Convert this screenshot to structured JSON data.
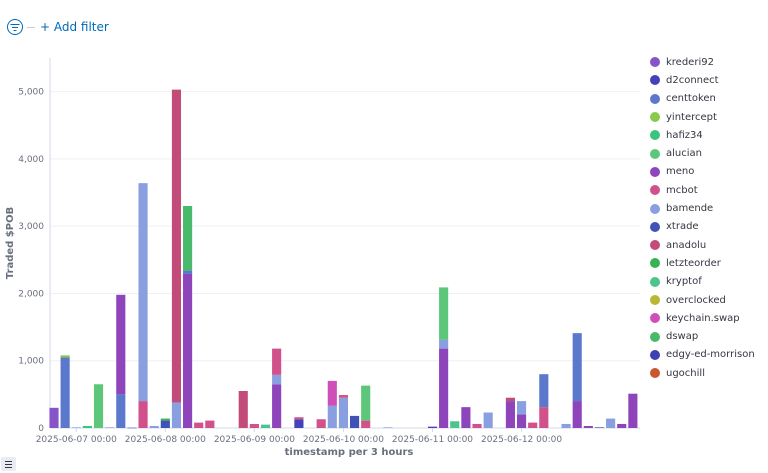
{
  "filter": {
    "icon": "filter-icon",
    "add_filter_label": "+ Add filter"
  },
  "legend_toggle_icon": "list-icon",
  "chart_data": {
    "type": "bar",
    "stacked": true,
    "ylabel": "Traded $POB",
    "xlabel": "timestamp per 3 hours",
    "ylim": [
      0,
      5500
    ],
    "yticks": [
      0,
      1000,
      2000,
      3000,
      4000,
      5000
    ],
    "ytick_labels": [
      "0",
      "1,000",
      "2,000",
      "3,000",
      "4,000",
      "5,000"
    ],
    "x_range": [
      "2025-06-06 18:00",
      "2025-06-13 06:00"
    ],
    "bar_interval_hours": 3,
    "xticks": [
      "2025-06-07 00:00",
      "2025-06-08 00:00",
      "2025-06-09 00:00",
      "2025-06-10 00:00",
      "2025-06-11 00:00",
      "2025-06-12 00:00"
    ],
    "legend_position": "right",
    "series": [
      {
        "name": "krederi92",
        "color": "#8753c9"
      },
      {
        "name": "d2connect",
        "color": "#4541b8"
      },
      {
        "name": "centtoken",
        "color": "#5b78cd"
      },
      {
        "name": "yintercept",
        "color": "#89c94b"
      },
      {
        "name": "hafiz34",
        "color": "#3bc47e"
      },
      {
        "name": "alucian",
        "color": "#5cc77a"
      },
      {
        "name": "meno",
        "color": "#8e44ba"
      },
      {
        "name": "mcbot",
        "color": "#d1518a"
      },
      {
        "name": "bamende",
        "color": "#8a9fe0"
      },
      {
        "name": "xtrade",
        "color": "#3f52b5"
      },
      {
        "name": "anadolu",
        "color": "#c24b7a"
      },
      {
        "name": "letzteorder",
        "color": "#38b255"
      },
      {
        "name": "kryptof",
        "color": "#4bc48e"
      },
      {
        "name": "overclocked",
        "color": "#b9b834"
      },
      {
        "name": "keychain.swap",
        "color": "#cf4fb8"
      },
      {
        "name": "dswap",
        "color": "#49b96b"
      },
      {
        "name": "edgy-ed-morrison",
        "color": "#3d3fb3"
      },
      {
        "name": "ugochill",
        "color": "#c9562f"
      }
    ],
    "bars": [
      {
        "t": "2025-06-06 18:00",
        "segments": [
          [
            "krederi92",
            300
          ]
        ]
      },
      {
        "t": "2025-06-06 21:00",
        "segments": [
          [
            "centtoken",
            1050
          ],
          [
            "yintercept",
            30
          ]
        ]
      },
      {
        "t": "2025-06-07 00:00",
        "segments": [
          [
            "bamende",
            10
          ]
        ]
      },
      {
        "t": "2025-06-07 03:00",
        "segments": [
          [
            "hafiz34",
            30
          ]
        ]
      },
      {
        "t": "2025-06-07 06:00",
        "segments": [
          [
            "alucian",
            650
          ]
        ]
      },
      {
        "t": "2025-06-07 09:00",
        "segments": [
          [
            "bamende",
            10
          ]
        ]
      },
      {
        "t": "2025-06-07 12:00",
        "segments": [
          [
            "centtoken",
            500
          ],
          [
            "meno",
            1480
          ]
        ]
      },
      {
        "t": "2025-06-07 15:00",
        "segments": [
          [
            "xtrade",
            5
          ]
        ]
      },
      {
        "t": "2025-06-07 18:00",
        "segments": [
          [
            "mcbot",
            400
          ],
          [
            "bamende",
            3240
          ]
        ]
      },
      {
        "t": "2025-06-07 21:00",
        "segments": [
          [
            "bamende",
            30
          ]
        ]
      },
      {
        "t": "2025-06-08 00:00",
        "segments": [
          [
            "xtrade",
            110
          ],
          [
            "letzteorder",
            30
          ]
        ]
      },
      {
        "t": "2025-06-08 03:00",
        "segments": [
          [
            "bamende",
            380
          ],
          [
            "anadolu",
            4650
          ]
        ]
      },
      {
        "t": "2025-06-08 06:00",
        "segments": [
          [
            "meno",
            2290
          ],
          [
            "centtoken",
            50
          ],
          [
            "dswap",
            960
          ]
        ]
      },
      {
        "t": "2025-06-08 09:00",
        "segments": [
          [
            "mcbot",
            80
          ]
        ]
      },
      {
        "t": "2025-06-08 12:00",
        "segments": [
          [
            "mcbot",
            110
          ]
        ]
      },
      {
        "t": "2025-06-08 21:00",
        "segments": [
          [
            "anadolu",
            550
          ]
        ]
      },
      {
        "t": "2025-06-09 00:00",
        "segments": [
          [
            "mcbot",
            60
          ]
        ]
      },
      {
        "t": "2025-06-09 03:00",
        "segments": [
          [
            "kryptof",
            50
          ]
        ]
      },
      {
        "t": "2025-06-09 06:00",
        "segments": [
          [
            "meno",
            650
          ],
          [
            "bamende",
            140
          ],
          [
            "mcbot",
            390
          ]
        ]
      },
      {
        "t": "2025-06-09 12:00",
        "segments": [
          [
            "d2connect",
            130
          ],
          [
            "mcbot",
            30
          ]
        ]
      },
      {
        "t": "2025-06-09 18:00",
        "segments": [
          [
            "mcbot",
            130
          ]
        ]
      },
      {
        "t": "2025-06-09 21:00",
        "segments": [
          [
            "bamende",
            330
          ],
          [
            "keychain.swap",
            370
          ]
        ]
      },
      {
        "t": "2025-06-10 00:00",
        "segments": [
          [
            "bamende",
            450
          ],
          [
            "mcbot",
            40
          ]
        ]
      },
      {
        "t": "2025-06-10 03:00",
        "segments": [
          [
            "xtrade",
            180
          ]
        ]
      },
      {
        "t": "2025-06-10 06:00",
        "segments": [
          [
            "mcbot",
            110
          ],
          [
            "alucian",
            520
          ]
        ]
      },
      {
        "t": "2025-06-10 12:00",
        "segments": [
          [
            "bamende",
            10
          ]
        ]
      },
      {
        "t": "2025-06-11 00:00",
        "segments": [
          [
            "d2connect",
            20
          ]
        ]
      },
      {
        "t": "2025-06-11 03:00",
        "segments": [
          [
            "meno",
            1180
          ],
          [
            "bamende",
            130
          ],
          [
            "alucian",
            780
          ]
        ]
      },
      {
        "t": "2025-06-11 06:00",
        "segments": [
          [
            "kryptof",
            100
          ]
        ]
      },
      {
        "t": "2025-06-11 09:00",
        "segments": [
          [
            "meno",
            310
          ]
        ]
      },
      {
        "t": "2025-06-11 12:00",
        "segments": [
          [
            "mcbot",
            60
          ]
        ]
      },
      {
        "t": "2025-06-11 15:00",
        "segments": [
          [
            "bamende",
            230
          ]
        ]
      },
      {
        "t": "2025-06-11 21:00",
        "segments": [
          [
            "meno",
            400
          ],
          [
            "anadolu",
            50
          ]
        ]
      },
      {
        "t": "2025-06-12 00:00",
        "segments": [
          [
            "meno",
            200
          ],
          [
            "bamende",
            200
          ]
        ]
      },
      {
        "t": "2025-06-12 03:00",
        "segments": [
          [
            "mcbot",
            80
          ]
        ]
      },
      {
        "t": "2025-06-12 06:00",
        "segments": [
          [
            "mcbot",
            310
          ],
          [
            "centtoken",
            490
          ]
        ]
      },
      {
        "t": "2025-06-12 12:00",
        "segments": [
          [
            "bamende",
            60
          ]
        ]
      },
      {
        "t": "2025-06-12 15:00",
        "segments": [
          [
            "meno",
            400
          ],
          [
            "centtoken",
            1010
          ]
        ]
      },
      {
        "t": "2025-06-12 18:00",
        "segments": [
          [
            "meno",
            30
          ]
        ]
      },
      {
        "t": "2025-06-12 21:00",
        "segments": [
          [
            "xtrade",
            10
          ]
        ]
      },
      {
        "t": "2025-06-13 00:00",
        "segments": [
          [
            "bamende",
            140
          ]
        ]
      },
      {
        "t": "2025-06-13 03:00",
        "segments": [
          [
            "meno",
            60
          ]
        ]
      },
      {
        "t": "2025-06-13 06:00",
        "segments": [
          [
            "meno",
            510
          ]
        ]
      }
    ]
  }
}
